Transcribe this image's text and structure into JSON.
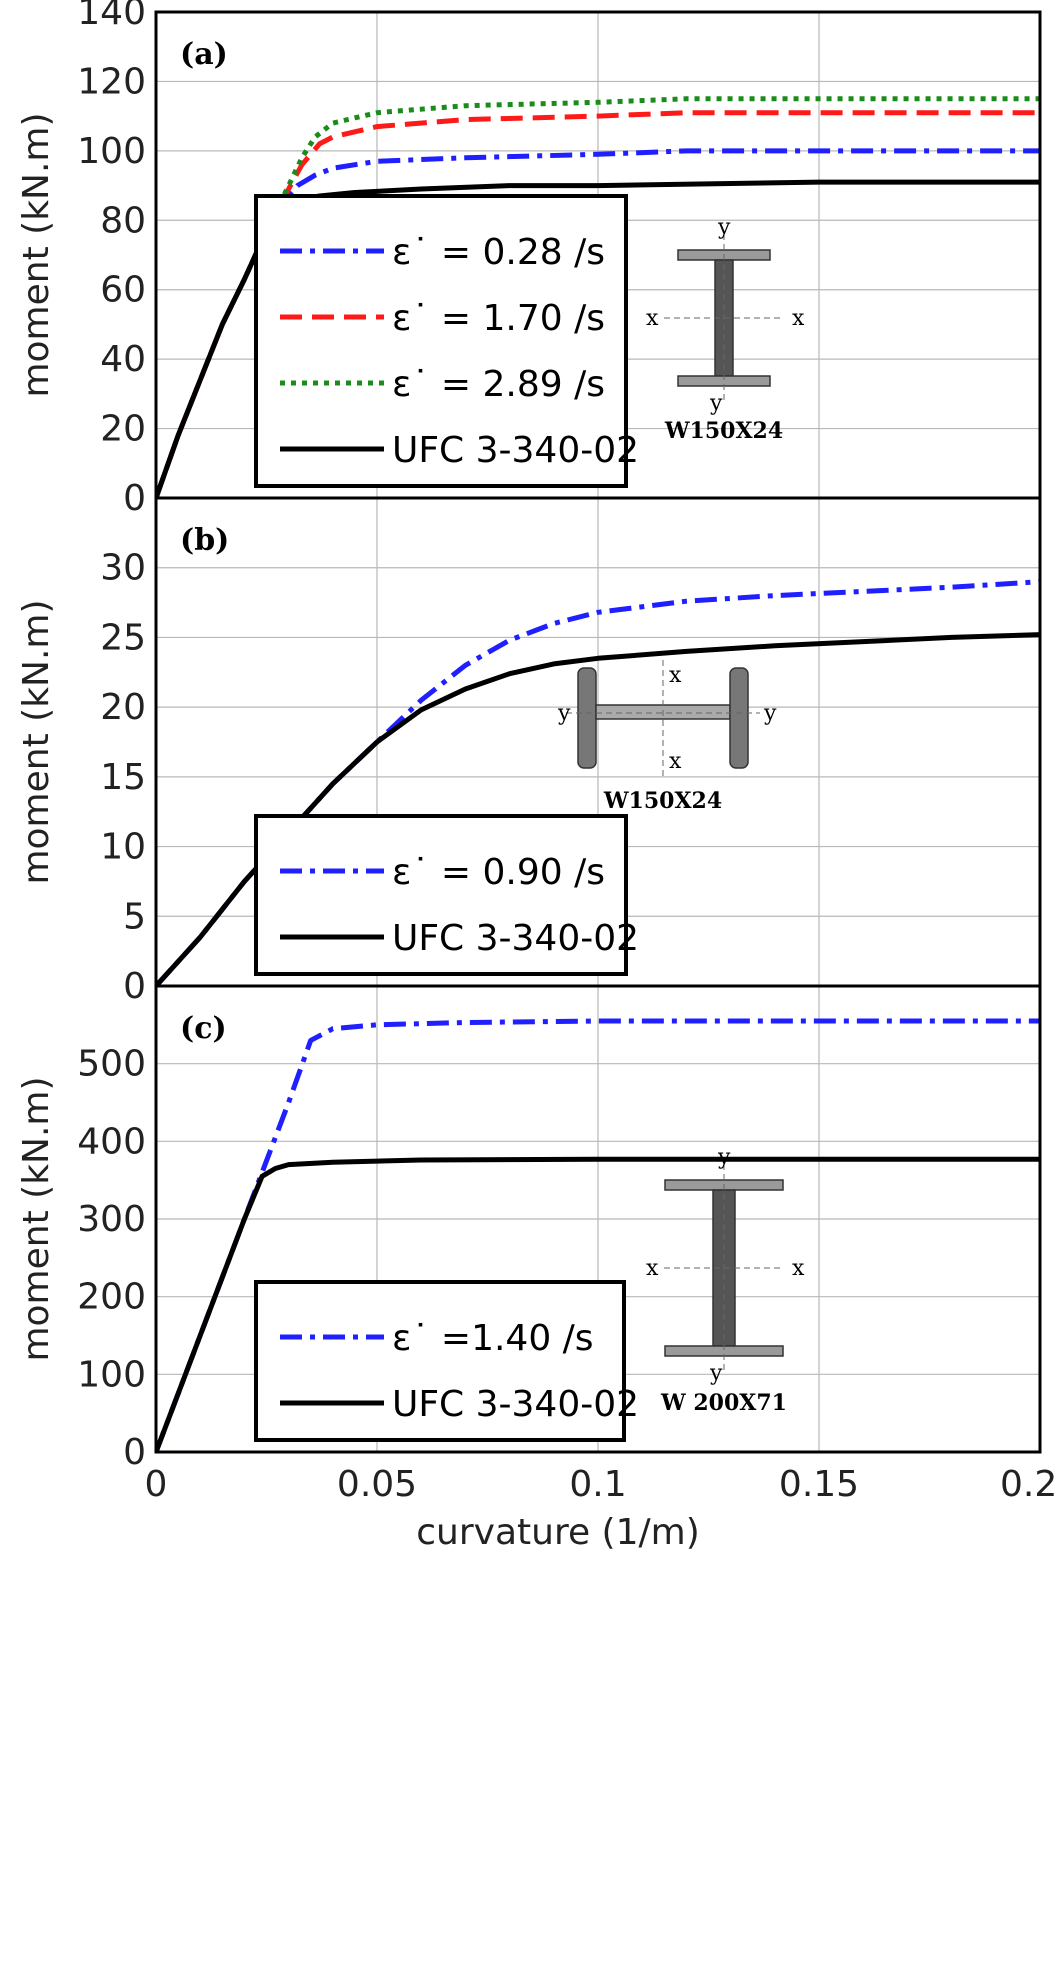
{
  "chart_data": [
    {
      "type": "line",
      "panel_label": "(a)",
      "ylabel": "moment (kN.m)",
      "xlabel": "",
      "xlim": [
        0,
        0.2
      ],
      "ylim": [
        0,
        140
      ],
      "xticks": [
        "0",
        "0.05",
        "0.1",
        "0.15",
        "0.2"
      ],
      "yticks": [
        "0",
        "20",
        "40",
        "60",
        "80",
        "100",
        "120",
        "140"
      ],
      "grid": true,
      "legend_position": "lower-left",
      "section": {
        "caption": "W150X24",
        "axis_top": "y",
        "axis_bottom": "y",
        "axis_left": "x",
        "axis_right": "x",
        "orientation": "strong"
      },
      "series": [
        {
          "name": "ε˙ = 0.28 /s",
          "color": "#1f1fff",
          "dash": "dashdot",
          "x": [
            0,
            0.005,
            0.01,
            0.015,
            0.02,
            0.025,
            0.028,
            0.032,
            0.036,
            0.04,
            0.05,
            0.07,
            0.1,
            0.12,
            0.15,
            0.2
          ],
          "y": [
            0,
            18,
            34,
            50,
            63,
            77,
            84,
            90,
            93,
            95,
            97,
            98,
            99,
            100,
            100,
            100
          ]
        },
        {
          "name": "ε˙ = 1.70 /s",
          "color": "#ff1a1a",
          "dash": "dashed",
          "x": [
            0,
            0.005,
            0.01,
            0.015,
            0.02,
            0.025,
            0.03,
            0.033,
            0.037,
            0.04,
            0.05,
            0.07,
            0.1,
            0.12,
            0.15,
            0.2
          ],
          "y": [
            0,
            18,
            34,
            50,
            63,
            77,
            89,
            96,
            102,
            104,
            107,
            109,
            110,
            111,
            111,
            111
          ]
        },
        {
          "name": "ε˙ = 2.89 /s",
          "color": "#1a8c1a",
          "dash": "dotted",
          "x": [
            0,
            0.005,
            0.01,
            0.015,
            0.02,
            0.025,
            0.03,
            0.033,
            0.036,
            0.04,
            0.05,
            0.07,
            0.1,
            0.12,
            0.15,
            0.2
          ],
          "y": [
            0,
            18,
            34,
            50,
            63,
            77,
            90,
            98,
            104,
            108,
            111,
            113,
            114,
            115,
            115,
            115
          ]
        },
        {
          "name": "UFC 3-340-02",
          "color": "#000000",
          "dash": "solid",
          "x": [
            0,
            0.005,
            0.01,
            0.015,
            0.02,
            0.025,
            0.028,
            0.03,
            0.033,
            0.037,
            0.045,
            0.06,
            0.08,
            0.1,
            0.15,
            0.2
          ],
          "y": [
            0,
            18,
            34,
            50,
            63,
            77,
            82,
            84,
            86,
            87,
            88,
            89,
            90,
            90,
            91,
            91
          ]
        }
      ]
    },
    {
      "type": "line",
      "panel_label": "(b)",
      "ylabel": "moment (kN.m)",
      "xlabel": "",
      "xlim": [
        0,
        0.2
      ],
      "ylim": [
        0,
        35
      ],
      "xticks": [
        "0",
        "0.05",
        "0.1",
        "0.15",
        "0.2"
      ],
      "yticks": [
        "0",
        "5",
        "10",
        "15",
        "20",
        "25",
        "30"
      ],
      "grid": true,
      "legend_position": "lower-left",
      "section": {
        "caption": "W150X24",
        "axis_top": "x",
        "axis_bottom": "x",
        "axis_left": "y",
        "axis_right": "y",
        "orientation": "weak"
      },
      "series": [
        {
          "name": "ε˙ = 0.90 /s",
          "color": "#1f1fff",
          "dash": "dashdot",
          "x": [
            0,
            0.01,
            0.02,
            0.03,
            0.04,
            0.05,
            0.06,
            0.07,
            0.08,
            0.09,
            0.1,
            0.12,
            0.14,
            0.16,
            0.18,
            0.2
          ],
          "y": [
            0,
            3.5,
            7.5,
            11,
            14.5,
            17.5,
            20.5,
            23,
            24.8,
            26,
            26.8,
            27.6,
            28,
            28.3,
            28.6,
            29
          ]
        },
        {
          "name": "UFC 3-340-02",
          "color": "#000000",
          "dash": "solid",
          "x": [
            0,
            0.01,
            0.02,
            0.03,
            0.04,
            0.05,
            0.06,
            0.07,
            0.08,
            0.09,
            0.1,
            0.12,
            0.14,
            0.16,
            0.18,
            0.2
          ],
          "y": [
            0,
            3.5,
            7.5,
            11,
            14.5,
            17.5,
            19.8,
            21.3,
            22.4,
            23.1,
            23.5,
            24,
            24.4,
            24.7,
            25,
            25.2
          ]
        }
      ]
    },
    {
      "type": "line",
      "panel_label": "(c)",
      "ylabel": "moment (kN.m)",
      "xlabel": "curvature (1/m)",
      "xlim": [
        0,
        0.2
      ],
      "ylim": [
        0,
        600
      ],
      "xticks": [
        "0",
        "0.05",
        "0.1",
        "0.15",
        "0.2"
      ],
      "yticks": [
        "0",
        "100",
        "200",
        "300",
        "400",
        "500"
      ],
      "grid": true,
      "legend_position": "lower-left",
      "section": {
        "caption": "W 200X71",
        "axis_top": "y",
        "axis_bottom": "y",
        "axis_left": "x",
        "axis_right": "x",
        "orientation": "strong"
      },
      "series": [
        {
          "name": "ε˙ =1.40 /s",
          "color": "#1f1fff",
          "dash": "dashdot",
          "x": [
            0,
            0.005,
            0.01,
            0.015,
            0.02,
            0.025,
            0.03,
            0.035,
            0.04,
            0.05,
            0.07,
            0.1,
            0.15,
            0.2
          ],
          "y": [
            0,
            75,
            150,
            225,
            300,
            375,
            450,
            530,
            545,
            550,
            553,
            555,
            555,
            555
          ]
        },
        {
          "name": "UFC 3-340-02",
          "color": "#000000",
          "dash": "solid",
          "x": [
            0,
            0.005,
            0.01,
            0.015,
            0.02,
            0.024,
            0.027,
            0.03,
            0.04,
            0.06,
            0.1,
            0.15,
            0.2
          ],
          "y": [
            0,
            75,
            150,
            225,
            300,
            355,
            365,
            370,
            373,
            376,
            377,
            377,
            377
          ]
        }
      ]
    }
  ]
}
